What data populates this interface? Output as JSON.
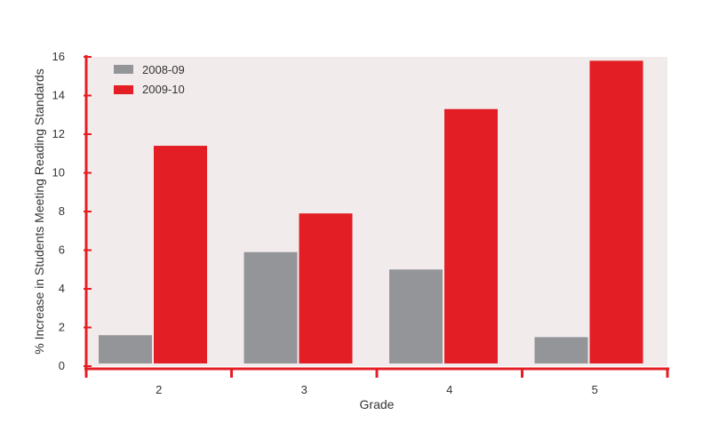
{
  "chart_data": {
    "type": "bar",
    "title": "",
    "xlabel": "Grade",
    "ylabel": "% Increase in Students Meeting Reading Standards",
    "categories": [
      "2",
      "3",
      "4",
      "5"
    ],
    "series": [
      {
        "name": "2008-09",
        "values": [
          1.6,
          5.9,
          5.0,
          1.5
        ],
        "color": "#939598"
      },
      {
        "name": "2009-10",
        "values": [
          11.4,
          7.9,
          13.3,
          15.8
        ],
        "color": "#e31e24"
      }
    ],
    "ylim": [
      0,
      16
    ],
    "yticks": [
      "0",
      "2",
      "4",
      "6",
      "8",
      "10",
      "12",
      "14",
      "16"
    ],
    "grid": false,
    "legend_position": "top-left",
    "colors": {
      "plot_background": "#f2ebec",
      "axis": "#e31e24"
    }
  }
}
